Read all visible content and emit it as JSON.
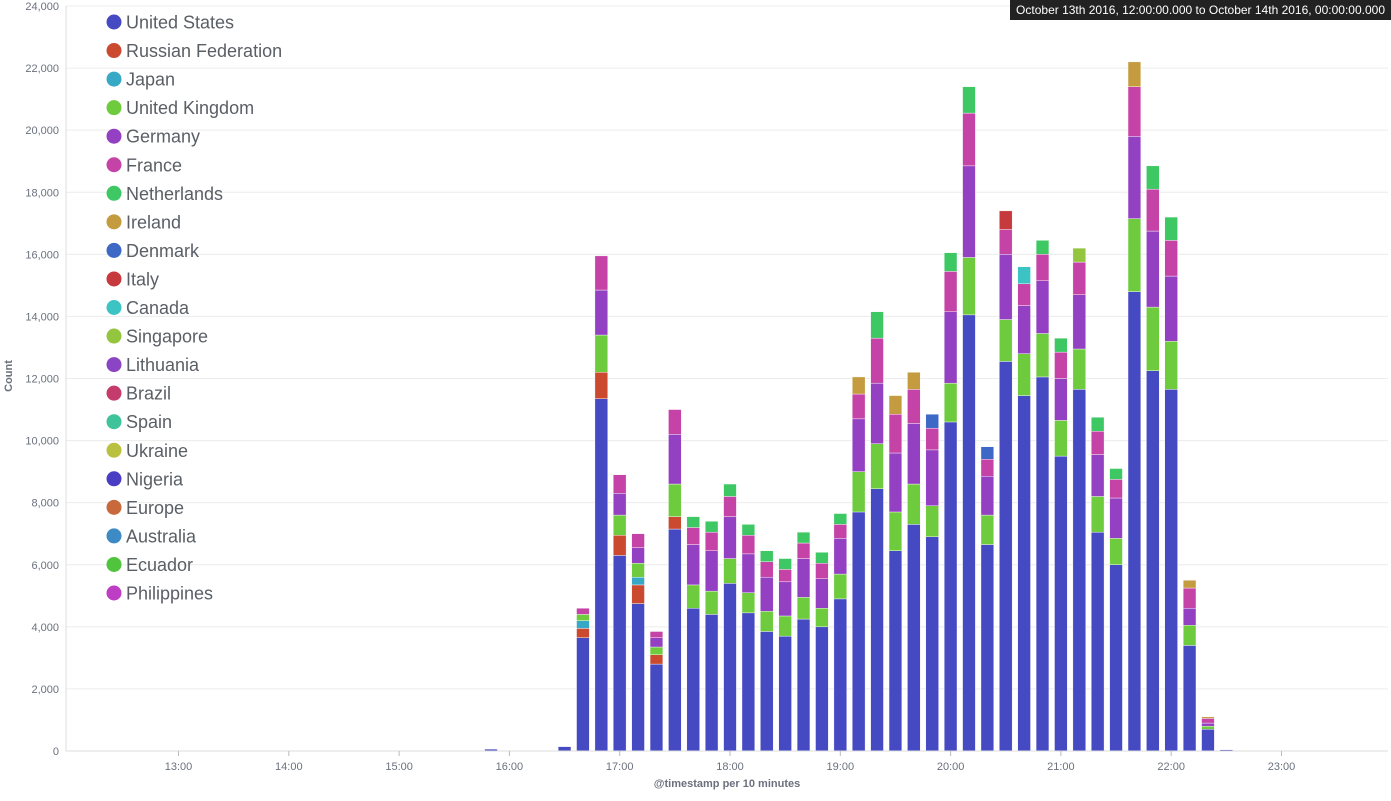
{
  "time_range": "October 13th 2016, 12:00:00.000 to October 14th 2016, 00:00:00.000",
  "chart_data": {
    "type": "bar",
    "stacked": true,
    "xlabel": "@timestamp per 10 minutes",
    "ylabel": "Count",
    "ylim": [
      0,
      24000
    ],
    "yticks": [
      0,
      2000,
      4000,
      6000,
      8000,
      10000,
      12000,
      14000,
      16000,
      18000,
      20000,
      22000,
      24000
    ],
    "ytick_labels": [
      "0",
      "2,000",
      "4,000",
      "6,000",
      "8,000",
      "10,000",
      "12,000",
      "14,000",
      "16,000",
      "18,000",
      "20,000",
      "22,000",
      "24,000"
    ],
    "xtick_labels": [
      "13:00",
      "14:00",
      "15:00",
      "16:00",
      "17:00",
      "18:00",
      "19:00",
      "20:00",
      "21:00",
      "22:00",
      "23:00"
    ],
    "legend_position": "top-left",
    "categories": [
      "15:50",
      "16:30",
      "16:40",
      "16:50",
      "17:00",
      "17:10",
      "17:20",
      "17:30",
      "17:40",
      "17:50",
      "18:00",
      "18:10",
      "18:20",
      "18:30",
      "18:40",
      "18:50",
      "19:00",
      "19:10",
      "19:20",
      "19:30",
      "19:40",
      "19:50",
      "20:00",
      "20:10",
      "20:20",
      "20:30",
      "20:40",
      "20:50",
      "21:00",
      "21:10",
      "21:20",
      "21:30",
      "21:40",
      "21:50",
      "22:00",
      "22:10",
      "22:20",
      "22:30"
    ],
    "series": [
      {
        "name": "United States",
        "color": "#4549c2",
        "values": [
          60,
          140,
          3650,
          11350,
          6300,
          4750,
          2800,
          7150,
          4600,
          4400,
          5400,
          4450,
          3850,
          3700,
          4250,
          4000,
          4900,
          7700,
          8450,
          6450,
          7300,
          6900,
          10600,
          14050,
          6650,
          12550,
          11450,
          12050,
          9500,
          11650,
          7050,
          6000,
          14800,
          12250,
          11650,
          3400,
          700,
          40
        ]
      },
      {
        "name": "Russian Federation",
        "color": "#cb4a2f",
        "values": [
          0,
          0,
          300,
          850,
          650,
          600,
          300,
          400,
          0,
          0,
          0,
          0,
          0,
          0,
          0,
          0,
          0,
          0,
          0,
          0,
          0,
          0,
          0,
          0,
          0,
          0,
          0,
          0,
          0,
          0,
          0,
          0,
          0,
          0,
          0,
          0,
          0,
          0
        ]
      },
      {
        "name": "Japan",
        "color": "#38a8c7",
        "values": [
          0,
          0,
          250,
          0,
          0,
          250,
          0,
          0,
          0,
          0,
          0,
          0,
          0,
          0,
          0,
          0,
          0,
          0,
          0,
          0,
          0,
          0,
          0,
          0,
          0,
          0,
          0,
          0,
          0,
          0,
          0,
          0,
          0,
          0,
          0,
          0,
          0,
          0
        ]
      },
      {
        "name": "United Kingdom",
        "color": "#6fcb3e",
        "values": [
          0,
          0,
          200,
          1200,
          650,
          450,
          250,
          1050,
          750,
          750,
          800,
          650,
          650,
          650,
          700,
          600,
          800,
          1300,
          1450,
          1250,
          1300,
          1000,
          1250,
          1850,
          950,
          1350,
          1350,
          1400,
          1150,
          1300,
          1150,
          850,
          2350,
          2050,
          1550,
          650,
          100,
          0
        ]
      },
      {
        "name": "Germany",
        "color": "#9340c3",
        "values": [
          0,
          0,
          0,
          1450,
          700,
          500,
          300,
          1600,
          1300,
          1300,
          1350,
          1250,
          1100,
          1100,
          1250,
          950,
          1150,
          1700,
          1950,
          1900,
          1950,
          1800,
          2300,
          2950,
          1250,
          2100,
          1550,
          1700,
          1350,
          1750,
          1350,
          1300,
          2650,
          2450,
          2100,
          550,
          100,
          0
        ]
      },
      {
        "name": "France",
        "color": "#c543a6",
        "values": [
          0,
          0,
          200,
          1100,
          600,
          450,
          200,
          800,
          550,
          600,
          650,
          600,
          500,
          400,
          500,
          500,
          450,
          800,
          1450,
          1250,
          1100,
          700,
          1300,
          1700,
          550,
          800,
          700,
          850,
          850,
          1050,
          750,
          600,
          1600,
          1350,
          1150,
          650,
          150,
          0
        ]
      },
      {
        "name": "Netherlands",
        "color": "#3ec864",
        "values": [
          0,
          0,
          0,
          0,
          0,
          0,
          0,
          0,
          350,
          350,
          400,
          350,
          350,
          350,
          350,
          350,
          350,
          0,
          850,
          0,
          0,
          0,
          600,
          850,
          0,
          0,
          0,
          450,
          450,
          0,
          450,
          350,
          0,
          750,
          750,
          0,
          0,
          0
        ]
      },
      {
        "name": "Ireland",
        "color": "#c49b3e",
        "values": [
          0,
          0,
          0,
          0,
          0,
          0,
          0,
          0,
          0,
          0,
          0,
          0,
          0,
          0,
          0,
          0,
          0,
          550,
          0,
          600,
          550,
          0,
          0,
          0,
          0,
          0,
          0,
          0,
          0,
          0,
          0,
          0,
          800,
          0,
          0,
          250,
          50,
          0
        ]
      },
      {
        "name": "Denmark",
        "color": "#3d68c5",
        "values": [
          0,
          0,
          0,
          0,
          0,
          0,
          0,
          0,
          0,
          0,
          0,
          0,
          0,
          0,
          0,
          0,
          0,
          0,
          0,
          0,
          0,
          450,
          0,
          0,
          400,
          0,
          0,
          0,
          0,
          0,
          0,
          0,
          0,
          0,
          0,
          0,
          0,
          0
        ]
      },
      {
        "name": "Italy",
        "color": "#c63a3d",
        "values": [
          0,
          0,
          0,
          0,
          0,
          0,
          0,
          0,
          0,
          0,
          0,
          0,
          0,
          0,
          0,
          0,
          0,
          0,
          0,
          0,
          0,
          0,
          0,
          0,
          0,
          600,
          0,
          0,
          0,
          0,
          0,
          0,
          0,
          0,
          0,
          0,
          0,
          0
        ]
      },
      {
        "name": "Canada",
        "color": "#3cc4c5",
        "values": [
          0,
          0,
          0,
          0,
          0,
          0,
          0,
          0,
          0,
          0,
          0,
          0,
          0,
          0,
          0,
          0,
          0,
          0,
          0,
          0,
          0,
          0,
          0,
          0,
          0,
          0,
          550,
          0,
          0,
          0,
          0,
          0,
          0,
          0,
          0,
          0,
          0,
          0
        ]
      },
      {
        "name": "Singapore",
        "color": "#94c53e",
        "values": [
          0,
          0,
          0,
          0,
          0,
          0,
          0,
          0,
          0,
          0,
          0,
          0,
          0,
          0,
          0,
          0,
          0,
          0,
          0,
          0,
          0,
          0,
          0,
          0,
          0,
          0,
          0,
          0,
          0,
          450,
          0,
          0,
          0,
          0,
          0,
          0,
          0,
          0
        ]
      },
      {
        "name": "Lithuania",
        "color": "#8b44c3",
        "values": [
          0,
          0,
          0,
          0,
          0,
          0,
          0,
          0,
          0,
          0,
          0,
          0,
          0,
          0,
          0,
          0,
          0,
          0,
          0,
          0,
          0,
          0,
          0,
          0,
          0,
          0,
          0,
          0,
          0,
          0,
          0,
          0,
          0,
          0,
          0,
          0,
          0,
          0
        ]
      },
      {
        "name": "Brazil",
        "color": "#c43c6b",
        "values": [
          0,
          0,
          0,
          0,
          0,
          0,
          0,
          0,
          0,
          0,
          0,
          0,
          0,
          0,
          0,
          0,
          0,
          0,
          0,
          0,
          0,
          0,
          0,
          0,
          0,
          0,
          0,
          0,
          0,
          0,
          0,
          0,
          0,
          0,
          0,
          0,
          0,
          0
        ]
      },
      {
        "name": "Spain",
        "color": "#3ec39b",
        "values": [
          0,
          0,
          0,
          0,
          0,
          0,
          0,
          0,
          0,
          0,
          0,
          0,
          0,
          0,
          0,
          0,
          0,
          0,
          0,
          0,
          0,
          0,
          0,
          0,
          0,
          0,
          0,
          0,
          0,
          0,
          0,
          0,
          0,
          0,
          0,
          0,
          0,
          0
        ]
      },
      {
        "name": "Ukraine",
        "color": "#b9c13e",
        "values": [
          0,
          0,
          0,
          0,
          0,
          0,
          0,
          0,
          0,
          0,
          0,
          0,
          0,
          0,
          0,
          0,
          0,
          0,
          0,
          0,
          0,
          0,
          0,
          0,
          0,
          0,
          0,
          0,
          0,
          0,
          0,
          0,
          0,
          0,
          0,
          0,
          0,
          0
        ]
      },
      {
        "name": "Nigeria",
        "color": "#4b3cc4",
        "values": [
          0,
          0,
          0,
          0,
          0,
          0,
          0,
          0,
          0,
          0,
          0,
          0,
          0,
          0,
          0,
          0,
          0,
          0,
          0,
          0,
          0,
          0,
          0,
          0,
          0,
          0,
          0,
          0,
          0,
          0,
          0,
          0,
          0,
          0,
          0,
          0,
          0,
          0
        ]
      },
      {
        "name": "Europe",
        "color": "#c8693c",
        "values": [
          0,
          0,
          0,
          0,
          0,
          0,
          0,
          0,
          0,
          0,
          0,
          0,
          0,
          0,
          0,
          0,
          0,
          0,
          0,
          0,
          0,
          0,
          0,
          0,
          0,
          0,
          0,
          0,
          0,
          0,
          0,
          0,
          0,
          0,
          0,
          0,
          0,
          0
        ]
      },
      {
        "name": "Australia",
        "color": "#3d8ac5",
        "values": [
          0,
          0,
          0,
          0,
          0,
          0,
          0,
          0,
          0,
          0,
          0,
          0,
          0,
          0,
          0,
          0,
          0,
          0,
          0,
          0,
          0,
          0,
          0,
          0,
          0,
          0,
          0,
          0,
          0,
          0,
          0,
          0,
          0,
          0,
          0,
          0,
          0,
          0
        ]
      },
      {
        "name": "Ecuador",
        "color": "#4fc43c",
        "values": [
          0,
          0,
          0,
          0,
          0,
          0,
          0,
          0,
          0,
          0,
          0,
          0,
          0,
          0,
          0,
          0,
          0,
          0,
          0,
          0,
          0,
          0,
          0,
          0,
          0,
          0,
          0,
          0,
          0,
          0,
          0,
          0,
          0,
          0,
          0,
          0,
          0,
          0
        ]
      },
      {
        "name": "Philippines",
        "color": "#bd3dc4",
        "values": [
          0,
          0,
          0,
          0,
          0,
          0,
          0,
          0,
          0,
          0,
          0,
          0,
          0,
          0,
          0,
          0,
          0,
          0,
          0,
          0,
          0,
          0,
          0,
          0,
          0,
          0,
          0,
          0,
          0,
          0,
          0,
          0,
          0,
          0,
          0,
          0,
          0,
          0
        ]
      }
    ]
  }
}
